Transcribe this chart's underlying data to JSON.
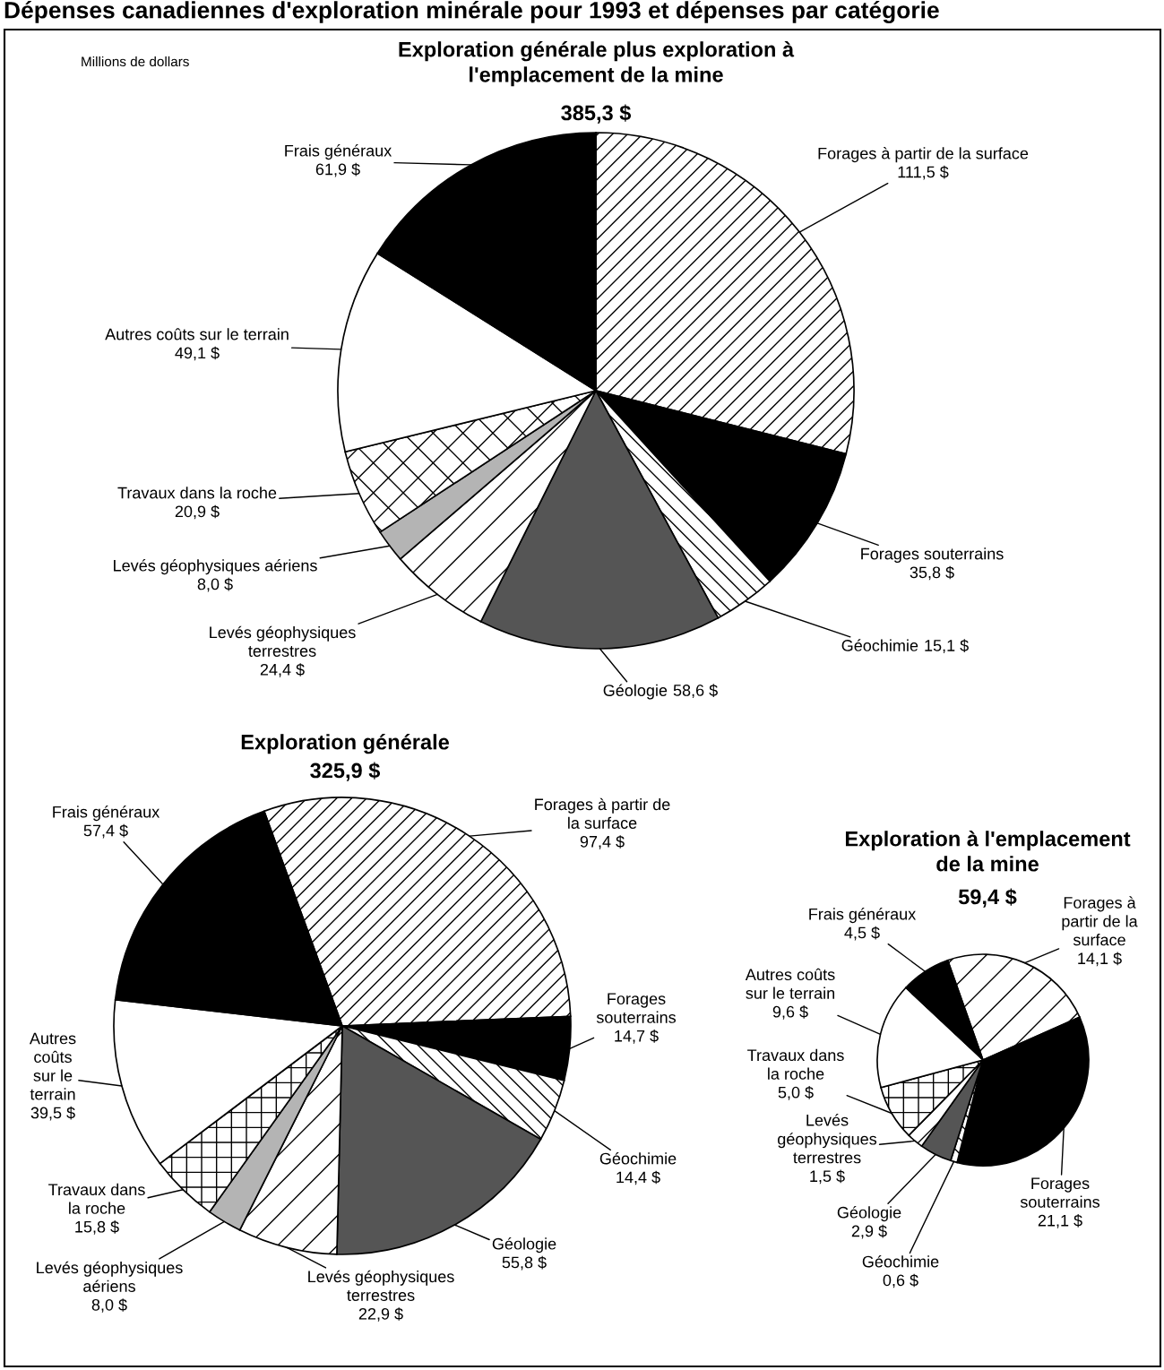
{
  "chart_data": [
    {
      "type": "pie",
      "title": "Exploration générale plus exploration à\nl'emplacement de la mine",
      "subtitle": "385,3 $",
      "annotations": [
        "Dépenses canadiennes d'exploration minérale pour 1993 et dépenses par catégorie",
        "Millions de dollars"
      ],
      "categories": [
        "Forages à partir de la surface",
        "Forages souterrains",
        "Géochimie",
        "Géologie",
        "Levés géophysiques\nterrestres",
        "Levés géophysiques aériens",
        "Travaux dans la roche",
        "Autres coûts sur le terrain",
        "Frais généraux"
      ],
      "values": [
        111.5,
        35.8,
        15.1,
        58.6,
        24.4,
        8.0,
        20.9,
        49.1,
        61.9
      ],
      "value_labels": [
        "111,5 $",
        "35,8 $",
        "15,1 $",
        "58,6 $",
        "24,4 $",
        "8,0 $",
        "20,9 $",
        "49,1 $",
        "61,9 $"
      ],
      "colors": [
        "#000000",
        "#000000",
        "#000000",
        "#555555",
        "#000000",
        "#b4b4b4",
        "#000000",
        "#ffffff",
        "#000000"
      ]
    },
    {
      "type": "pie",
      "title": "Exploration générale",
      "subtitle": "325,9 $",
      "categories": [
        "Forages à partir de\nla surface",
        "Forages\nsouterrains",
        "Géochimie",
        "Géologie",
        "Levés géophysiques\nterrestres",
        "Levés géophysiques\naériens",
        "Travaux dans\nla roche",
        "Autres\ncoûts\nsur le\nterrain",
        "Frais généraux"
      ],
      "values": [
        97.4,
        14.7,
        14.4,
        55.8,
        22.9,
        8.0,
        15.8,
        39.5,
        57.4
      ],
      "value_labels": [
        "97,4 $",
        "14,7 $",
        "14,4 $",
        "55,8 $",
        "22,9 $",
        "8,0 $",
        "15,8 $",
        "39,5 $",
        "57,4 $"
      ],
      "colors": [
        "#000000",
        "#000000",
        "#000000",
        "#555555",
        "#000000",
        "#b4b4b4",
        "#000000",
        "#ffffff",
        "#000000"
      ]
    },
    {
      "type": "pie",
      "title": "Exploration à l'emplacement\nde la mine",
      "subtitle": "59,4 $",
      "categories": [
        "Forages à\npartir de la\nsurface",
        "Forages\nsouterrains",
        "Géochimie",
        "Géologie",
        "Levés\ngéophysiques\nterrestres",
        "Travaux dans\nla roche",
        "Autres coûts\nsur le terrain",
        "Frais généraux"
      ],
      "values": [
        14.1,
        21.1,
        0.6,
        2.9,
        1.5,
        5.0,
        9.6,
        4.5
      ],
      "value_labels": [
        "14,1 $",
        "21,1 $",
        "0,6 $",
        "2,9 $",
        "1,5 $",
        "5,0 $",
        "9,6 $",
        "4,5 $"
      ],
      "colors": [
        "#000000",
        "#000000",
        "#000000",
        "#555555",
        "#000000",
        "#000000",
        "#ffffff",
        "#000000"
      ]
    }
  ]
}
